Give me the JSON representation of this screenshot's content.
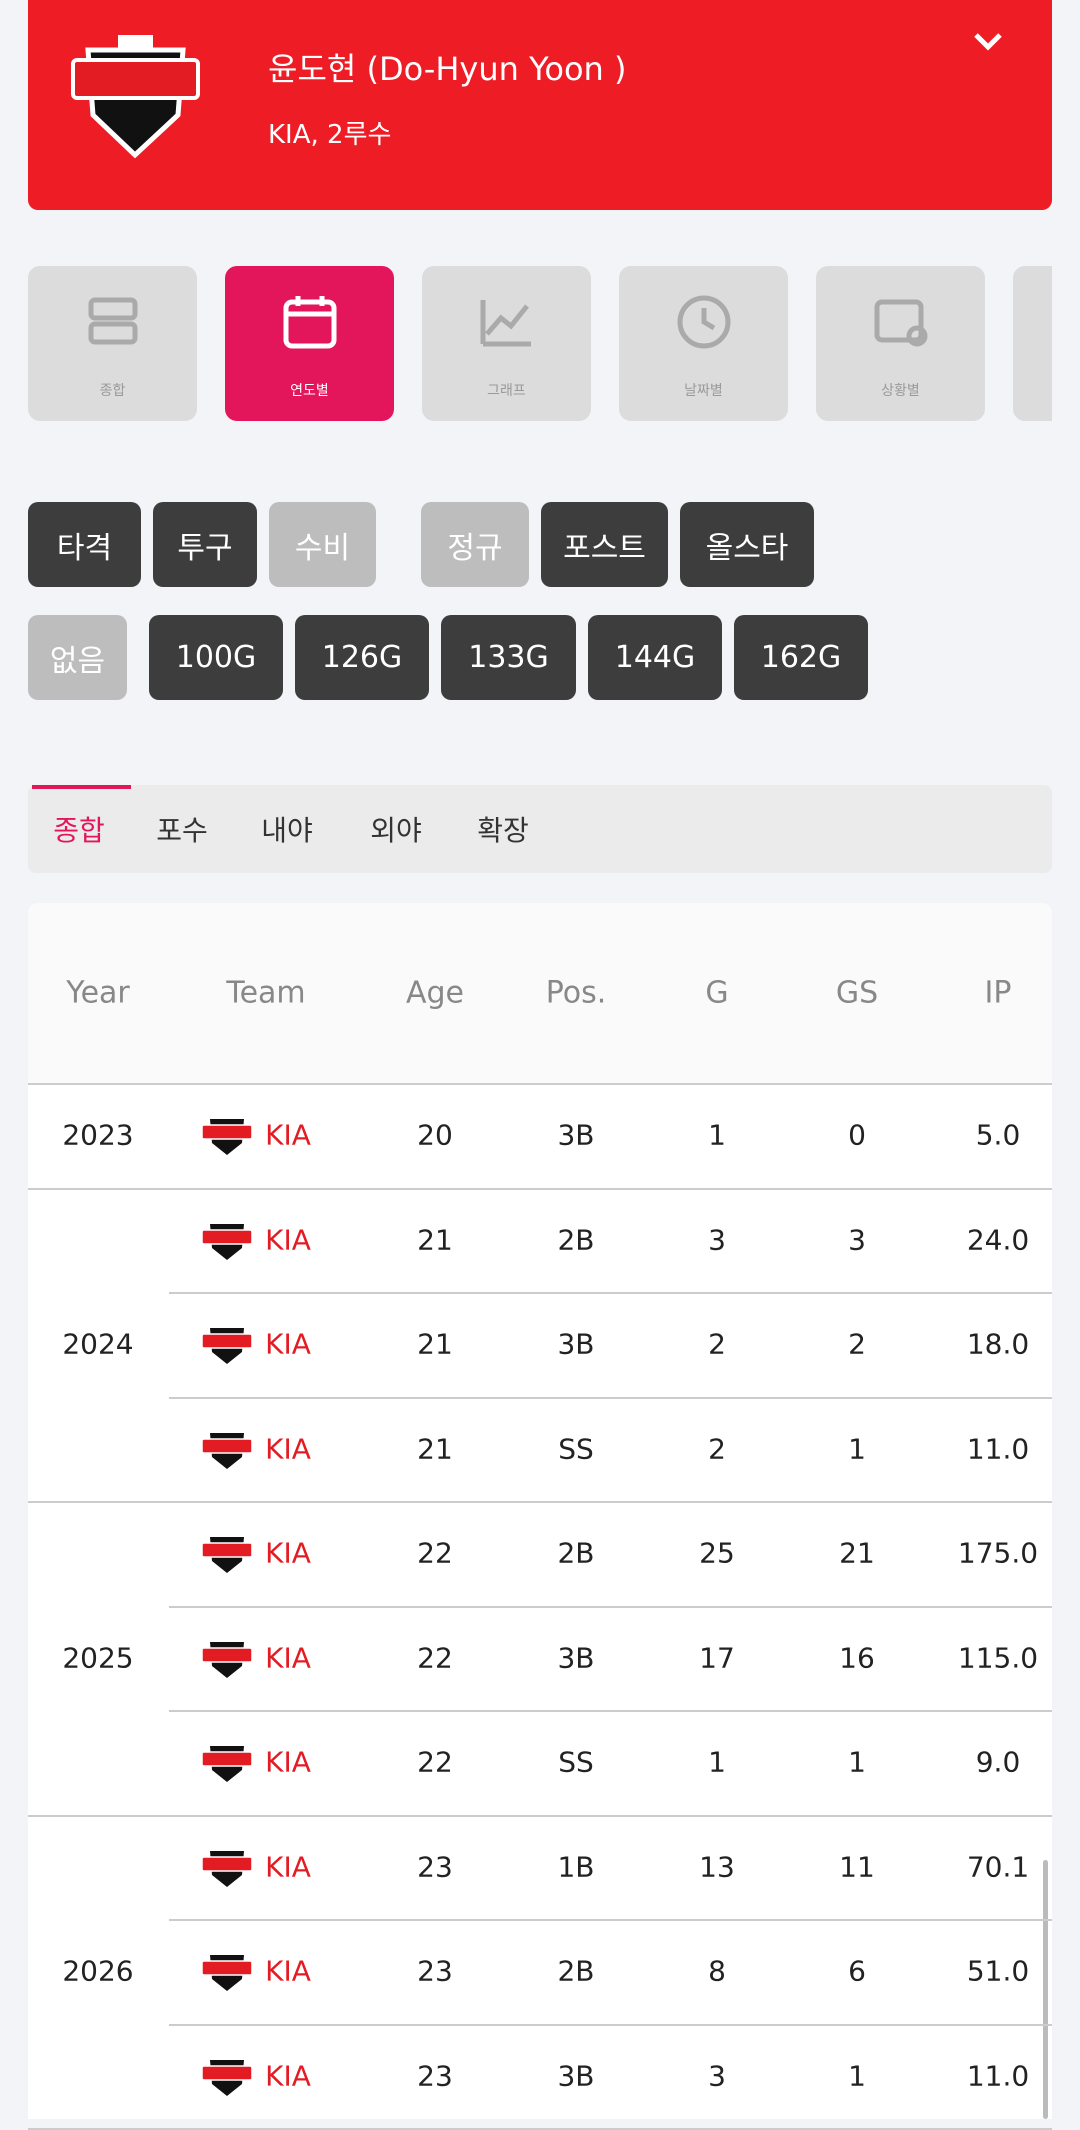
{
  "header": {
    "name": "윤도현 (Do-Hyun Yoon )",
    "subtitle": "KIA, 2루수"
  },
  "view_tabs": [
    "종합",
    "연도별",
    "그래프",
    "날짜별",
    "상황별"
  ],
  "filters_row1": [
    "타격",
    "투구",
    "수비",
    "정규",
    "포스트",
    "올스타"
  ],
  "filters_row2": [
    "없음",
    "100G",
    "126G",
    "133G",
    "144G",
    "162G"
  ],
  "sub_tabs": [
    "종합",
    "포수",
    "내야",
    "외야",
    "확장"
  ],
  "table": {
    "columns": [
      "Year",
      "Team",
      "Age",
      "Pos.",
      "G",
      "GS",
      "IP"
    ],
    "groups": [
      {
        "year": "2023",
        "rows": [
          [
            "KIA",
            "20",
            "3B",
            "1",
            "0",
            "5.0"
          ]
        ]
      },
      {
        "year": "2024",
        "rows": [
          [
            "KIA",
            "21",
            "2B",
            "3",
            "3",
            "24.0"
          ],
          [
            "KIA",
            "21",
            "3B",
            "2",
            "2",
            "18.0"
          ],
          [
            "KIA",
            "21",
            "SS",
            "2",
            "1",
            "11.0"
          ]
        ]
      },
      {
        "year": "2025",
        "rows": [
          [
            "KIA",
            "22",
            "2B",
            "25",
            "21",
            "175.0"
          ],
          [
            "KIA",
            "22",
            "3B",
            "17",
            "16",
            "115.0"
          ],
          [
            "KIA",
            "22",
            "SS",
            "1",
            "1",
            "9.0"
          ]
        ]
      },
      {
        "year": "2026",
        "rows": [
          [
            "KIA",
            "23",
            "1B",
            "13",
            "11",
            "70.1"
          ],
          [
            "KIA",
            "23",
            "2B",
            "8",
            "6",
            "51.0"
          ],
          [
            "KIA",
            "23",
            "3B",
            "3",
            "1",
            "11.0"
          ]
        ]
      }
    ]
  }
}
